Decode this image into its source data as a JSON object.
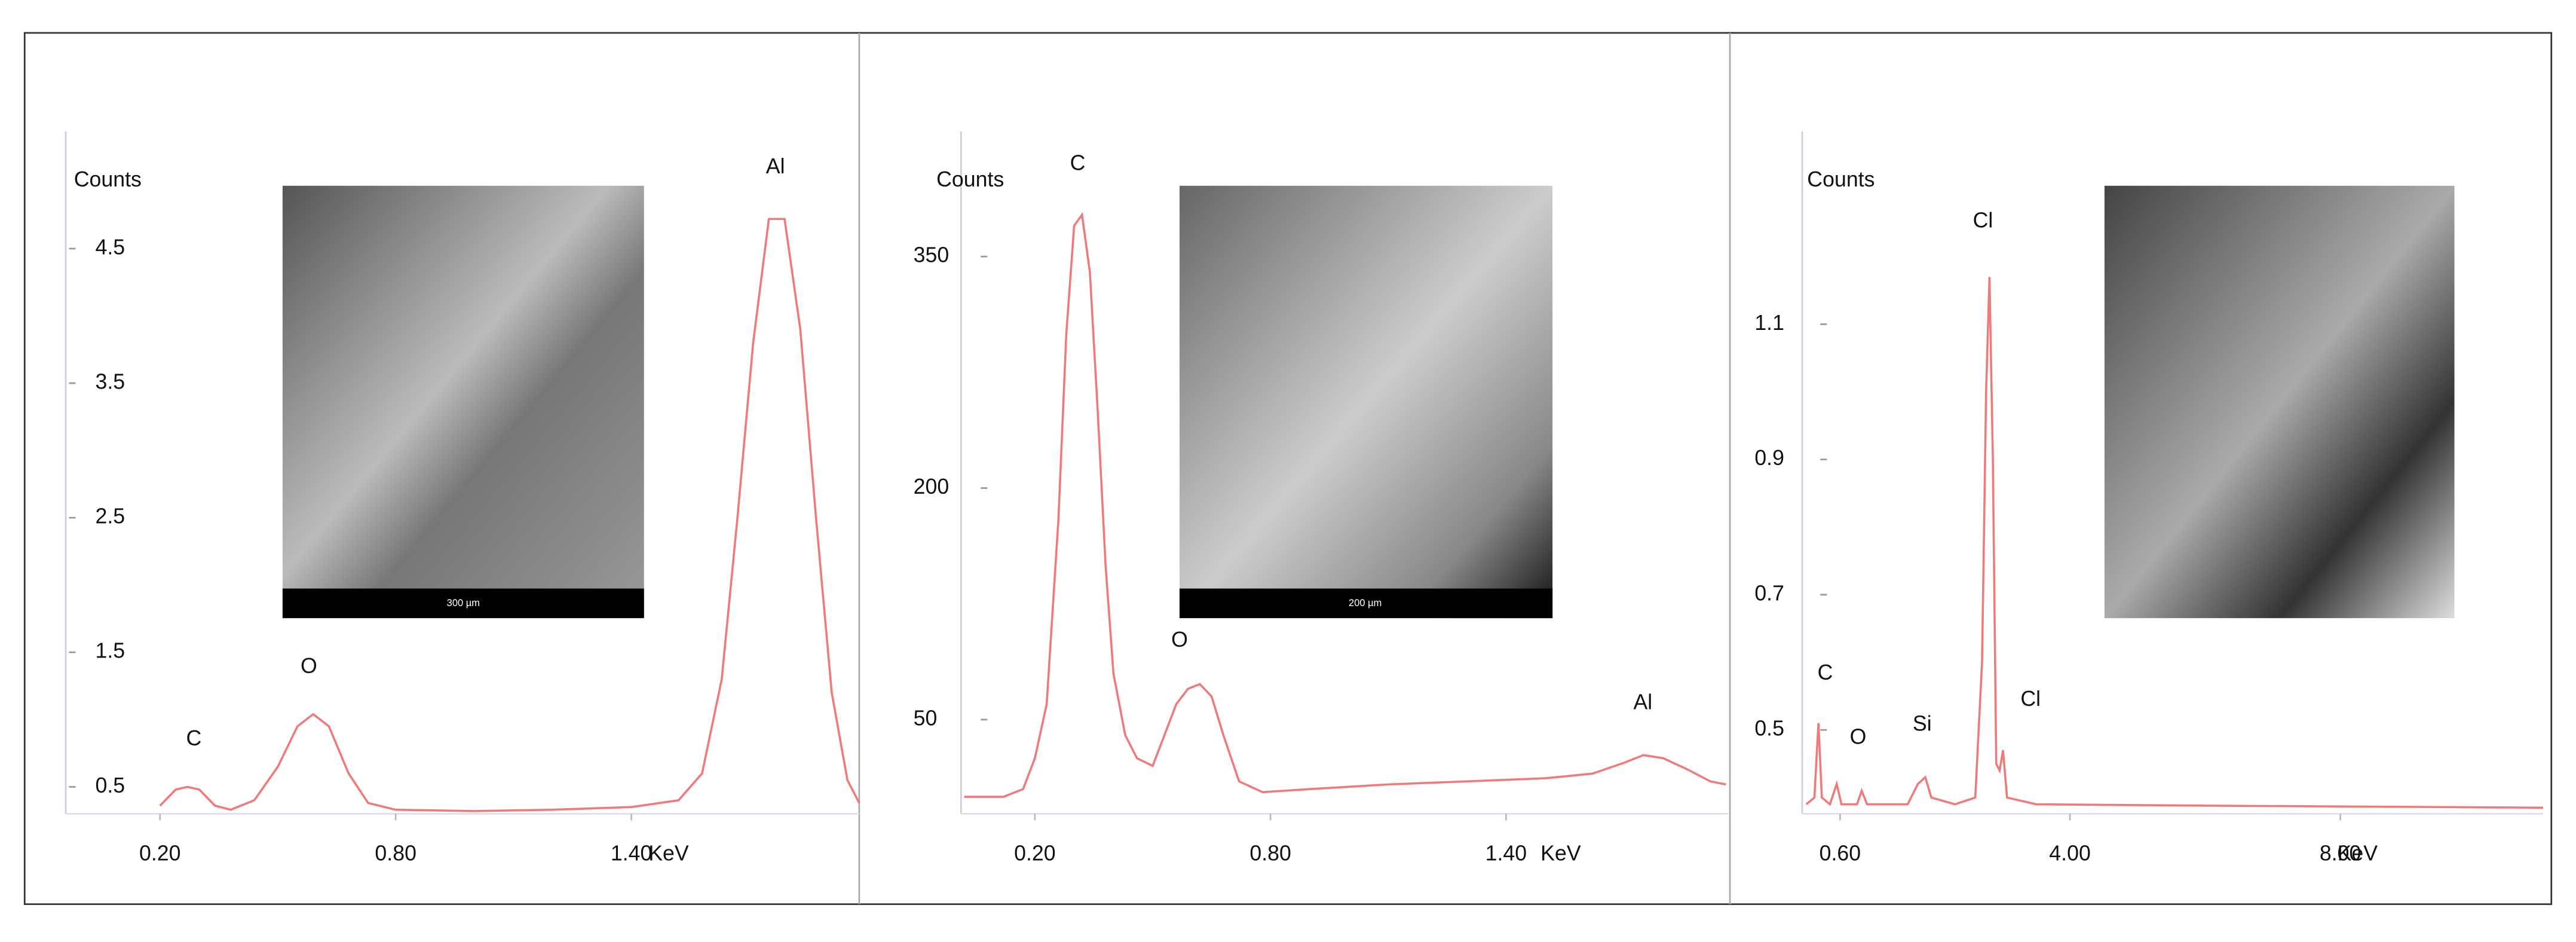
{
  "chart_data": [
    {
      "type": "line",
      "y_label": "Counts",
      "x_label": "KeV",
      "color": "#f07a7a",
      "annotations": [
        "C",
        "O",
        "Al"
      ],
      "inset_label": "300 µm",
      "xlim": [
        -0.04,
        1.98
      ],
      "ylim": [
        0.3,
        5.37
      ],
      "xticks": [
        {
          "value": 0.2,
          "label": "0.20"
        },
        {
          "value": 0.8,
          "label": "0.80"
        },
        {
          "value": 1.4,
          "label": "1.40"
        }
      ],
      "yticks": [
        0.5,
        1.5,
        2.5,
        3.5,
        4.5
      ],
      "x": [
        0.2,
        0.24,
        0.27,
        0.3,
        0.34,
        0.38,
        0.44,
        0.5,
        0.55,
        0.59,
        0.63,
        0.68,
        0.73,
        0.8,
        1.0,
        1.2,
        1.4,
        1.52,
        1.58,
        1.63,
        1.67,
        1.71,
        1.75,
        1.79,
        1.83,
        1.87,
        1.91,
        1.95,
        1.98
      ],
      "values": [
        0.36,
        0.48,
        0.5,
        0.48,
        0.36,
        0.33,
        0.4,
        0.65,
        0.95,
        1.04,
        0.95,
        0.6,
        0.38,
        0.33,
        0.32,
        0.33,
        0.35,
        0.4,
        0.6,
        1.3,
        2.5,
        3.8,
        4.72,
        4.72,
        3.9,
        2.5,
        1.2,
        0.55,
        0.38
      ]
    },
    {
      "type": "line",
      "y_label": "Counts",
      "x_label": "KeV",
      "color": "#f07a7a",
      "annotations": [
        "C",
        "O",
        "Al"
      ],
      "inset_label": "200 µm",
      "xlim": [
        0.012,
        1.966
      ],
      "ylim": [
        -11,
        431
      ],
      "xticks": [
        {
          "value": 0.2,
          "label": "0.20"
        },
        {
          "value": 0.8,
          "label": "0.80"
        },
        {
          "value": 1.4,
          "label": "1.40"
        }
      ],
      "yticks": [
        50,
        200,
        350
      ],
      "x": [
        0.02,
        0.12,
        0.17,
        0.2,
        0.23,
        0.26,
        0.28,
        0.3,
        0.32,
        0.34,
        0.36,
        0.38,
        0.4,
        0.43,
        0.46,
        0.5,
        0.53,
        0.56,
        0.59,
        0.62,
        0.65,
        0.68,
        0.72,
        0.78,
        0.9,
        1.1,
        1.3,
        1.5,
        1.62,
        1.7,
        1.75,
        1.8,
        1.86,
        1.92,
        1.96
      ],
      "values": [
        0,
        0,
        5,
        25,
        60,
        180,
        300,
        370,
        377,
        340,
        250,
        150,
        80,
        40,
        25,
        20,
        40,
        60,
        70,
        73,
        65,
        40,
        10,
        3,
        5,
        8,
        10,
        12,
        15,
        22,
        27,
        25,
        18,
        10,
        8
      ]
    },
    {
      "type": "line",
      "y_label": "Counts",
      "x_label": "KeV",
      "color": "#f07a7a",
      "annotations": [
        "C",
        "O",
        "Si",
        "Cl",
        "Cl"
      ],
      "xlim": [
        0.04,
        11.0
      ],
      "ylim": [
        0.376,
        1.385
      ],
      "xticks": [
        {
          "value": 0.6,
          "label": "0.60"
        },
        {
          "value": 4,
          "label": "4.00"
        },
        {
          "value": 8,
          "label": "8.00"
        }
      ],
      "yticks": [
        0.5,
        0.7,
        0.9,
        1.1
      ],
      "x": [
        0.1,
        0.22,
        0.28,
        0.33,
        0.45,
        0.55,
        0.62,
        0.85,
        0.92,
        1.0,
        1.6,
        1.75,
        1.86,
        1.95,
        2.3,
        2.6,
        2.7,
        2.76,
        2.81,
        2.86,
        2.91,
        2.96,
        3.01,
        3.07,
        3.5,
        6,
        11.0
      ],
      "values": [
        0.39,
        0.4,
        0.51,
        0.4,
        0.39,
        0.42,
        0.39,
        0.39,
        0.41,
        0.39,
        0.39,
        0.42,
        0.43,
        0.4,
        0.39,
        0.4,
        0.6,
        1.0,
        1.17,
        0.9,
        0.45,
        0.44,
        0.47,
        0.4,
        0.39,
        0.388,
        0.385
      ]
    }
  ]
}
